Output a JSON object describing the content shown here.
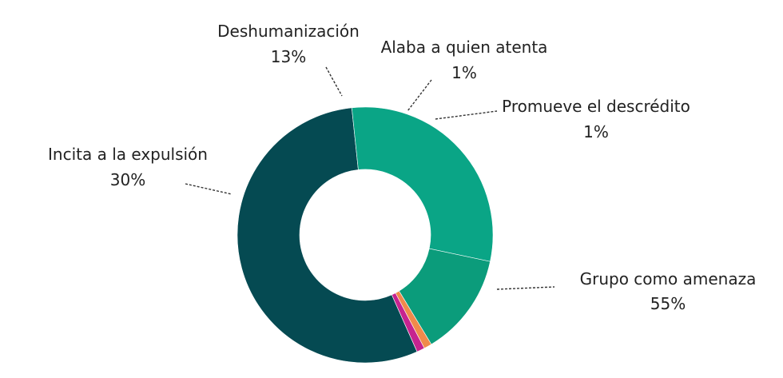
{
  "chart_data": {
    "type": "pie",
    "variant": "donut",
    "title": "",
    "categories": [
      "Grupo como amenaza",
      "Incita a la expulsión",
      "Deshumanización",
      "Alaba a quien atenta",
      "Promueve el descrédito"
    ],
    "values": [
      55,
      30,
      13,
      1,
      1
    ],
    "value_labels": [
      "55%",
      "30%",
      "13%",
      "1%",
      "1%"
    ],
    "colors": [
      "#054a52",
      "#0aa586",
      "#0b9c7b",
      "#f08a4b",
      "#c6238f"
    ],
    "legend": "none"
  },
  "colors": {
    "background": "#ffffff",
    "text": "#222222"
  }
}
